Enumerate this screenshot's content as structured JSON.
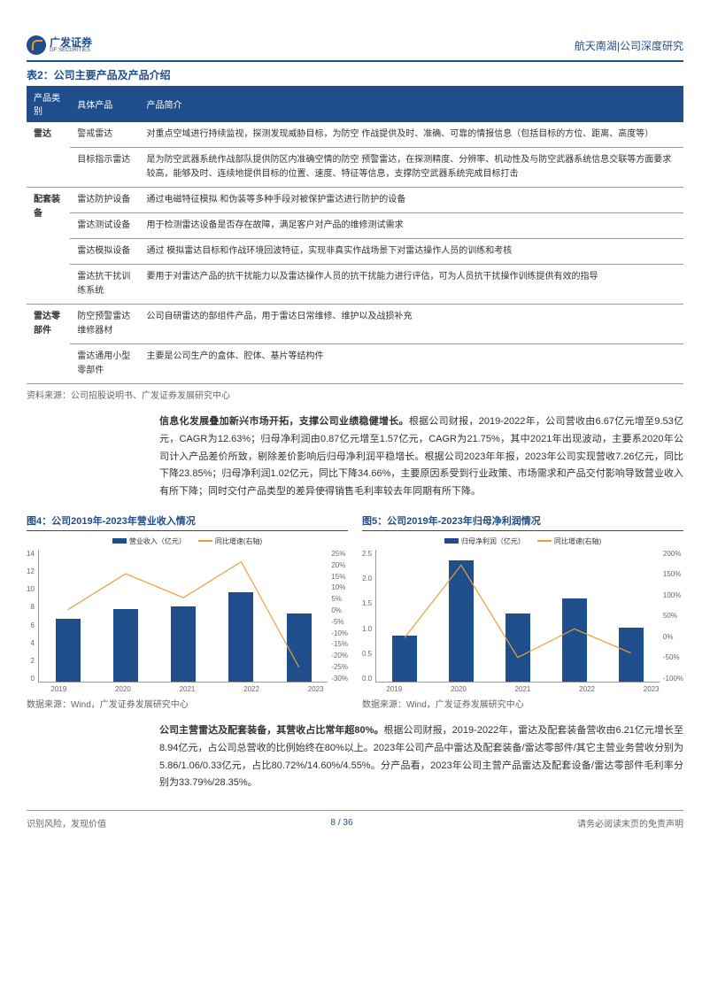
{
  "header": {
    "company_cn": "广发证券",
    "company_en": "GF SECURITIES",
    "right": "航天南湖|公司深度研究"
  },
  "table": {
    "title": "表2：公司主要产品及产品介绍",
    "headers": [
      "产品类别",
      "具体产品",
      "产品简介"
    ],
    "rows": [
      {
        "cat": "雷达",
        "prod": "警戒雷达",
        "desc": "对重点空域进行持续监视，探测发现威胁目标，为防空 作战提供及时、准确、可靠的情报信息（包括目标的方位、距离、高度等）"
      },
      {
        "cat": "",
        "prod": "目标指示雷达",
        "desc": "是为防空武器系统作战部队提供防区内准确空情的防空 预警雷达，在探测精度、分辨率、机动性及与防空武器系统信息交联等方面要求 较高，能够及时、连续地提供目标的位置、速度、特征等信息，支撑防空武器系统完成目标打击"
      },
      {
        "cat": "配套装备",
        "prod": "雷达防护设备",
        "desc": "通过电磁特征模拟 和伪装等多种手段对被保护雷达进行防护的设备"
      },
      {
        "cat": "",
        "prod": "雷达测试设备",
        "desc": "用于检测雷达设备是否存在故障，满足客户对产品的维修测试需求"
      },
      {
        "cat": "",
        "prod": "雷达模拟设备",
        "desc": "通过 模拟雷达目标和作战环境回波特征，实现非真实作战场景下对雷达操作人员的训练和考核"
      },
      {
        "cat": "",
        "prod": "雷达抗干扰训练系统",
        "desc": "要用于对雷达产品的抗干扰能力以及雷达操作人员的抗干扰能力进行评估，可为人员抗干扰操作训练提供有效的指导"
      },
      {
        "cat": "雷达零部件",
        "prod": "防空预警雷达维修器材",
        "desc": "公司自研雷达的部组件产品，用于雷达日常维修、维护以及战损补充"
      },
      {
        "cat": "",
        "prod": "雷达通用小型零部件",
        "desc": "主要是公司生产的盒体、腔体、基片等结构件"
      }
    ],
    "source": "资料来源：公司招股说明书、广发证券发展研究中心"
  },
  "para1": "信息化发展叠加新兴市场开拓，支撑公司业绩稳健增长。根据公司财报，2019-2022年，公司营收由6.67亿元增至9.53亿元，CAGR为12.63%；归母净利润由0.87亿元增至1.57亿元，CAGR为21.75%，其中2021年出现波动，主要系2020年公司计入产品差价所致，剔除差价影响后归母净利润平稳增长。根据公司2023年年报，2023年公司实现营收7.26亿元，同比下降23.85%；归母净利润1.02亿元，同比下降34.66%，主要原因系受到行业政策、市场需求和产品交付影响导致营业收入有所下降；同时交付产品类型的差异使得销售毛利率较去年同期有所下降。",
  "para1_bold": "信息化发展叠加新兴市场开拓，支撑公司业绩稳健增长。",
  "chart4": {
    "title": "图4：公司2019年-2023年营业收入情况",
    "legend": [
      "营业收入（亿元）",
      "同比增速(右轴)"
    ],
    "years": [
      "2019",
      "2020",
      "2021",
      "2022",
      "2023"
    ],
    "values": [
      6.67,
      7.7,
      8.0,
      9.53,
      7.26
    ],
    "growth": [
      0,
      15,
      5,
      20,
      -24
    ],
    "y_max": 14,
    "y_ticks": [
      "14",
      "12",
      "10",
      "8",
      "6",
      "4",
      "2",
      "0"
    ],
    "y2_ticks": [
      "25%",
      "20%",
      "15%",
      "10%",
      "5%",
      "0%",
      "-5%",
      "-10%",
      "-15%",
      "-20%",
      "-25%",
      "-30%"
    ],
    "bar_color": "#1f4e8c",
    "line_color": "#e8a03a",
    "source": "数据来源：Wind，广发证券发展研究中心"
  },
  "chart5": {
    "title": "图5：公司2019年-2023年归母净利润情况",
    "legend": [
      "归母净利润（亿元）",
      "同比增速(右轴)"
    ],
    "years": [
      "2019",
      "2020",
      "2021",
      "2022",
      "2023"
    ],
    "values": [
      0.87,
      2.3,
      1.3,
      1.57,
      1.02
    ],
    "growth": [
      0,
      165,
      -45,
      20,
      -35
    ],
    "y_max": 2.5,
    "y_ticks": [
      "2.5",
      "2.0",
      "1.5",
      "1.0",
      "0.5",
      "0.0"
    ],
    "y2_ticks": [
      "200%",
      "150%",
      "100%",
      "50%",
      "0%",
      "-50%",
      "-100%"
    ],
    "bar_color": "#1f4e8c",
    "line_color": "#e8a03a",
    "source": "数据来源：Wind，广发证券发展研究中心"
  },
  "para2": "公司主营雷达及配套装备，其营收占比常年超80%。根据公司财报，2019-2022年，雷达及配套装备营收由6.21亿元增长至8.94亿元，占公司总营收的比例始终在80%以上。2023年公司产品中雷达及配套装备/雷达零部件/其它主营业务营收分别为5.86/1.06/0.33亿元，占比80.72%/14.60%/4.55%。分产品看，2023年公司主营产品雷达及配套设备/雷达零部件毛利率分别为33.79%/28.35%。",
  "para2_bold": "公司主营雷达及配套装备，其营收占比常年超80%。",
  "footer": {
    "left": "识别风险，发现价值",
    "right": "请务必阅读末页的免责声明",
    "page": "8 / 36"
  }
}
